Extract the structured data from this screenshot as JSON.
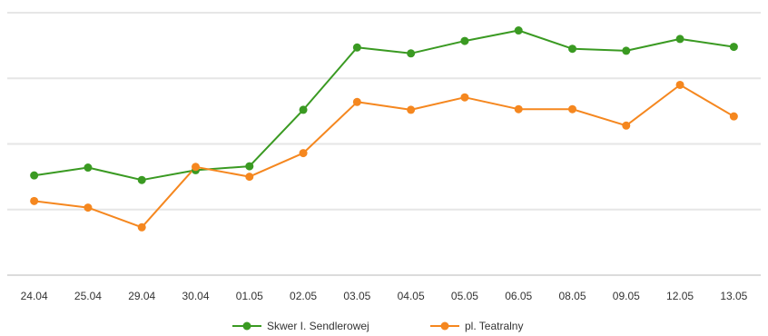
{
  "chart_data": {
    "type": "line",
    "categories": [
      "24.04",
      "25.04",
      "29.04",
      "30.04",
      "01.05",
      "02.05",
      "03.05",
      "04.05",
      "05.05",
      "06.05",
      "08.05",
      "09.05",
      "12.05",
      "13.05"
    ],
    "ylim": [
      0,
      4
    ],
    "grid": true,
    "legend_position": "bottom",
    "series": [
      {
        "name": "Skwer I. Sendlerowej",
        "color": "#3a9a22",
        "values": [
          1.52,
          1.64,
          1.45,
          1.6,
          1.66,
          2.52,
          3.47,
          3.38,
          3.57,
          3.73,
          3.45,
          3.42,
          3.6,
          3.48
        ]
      },
      {
        "name": "pl. Teatralny",
        "color": "#f5871f",
        "values": [
          1.13,
          1.03,
          0.73,
          1.65,
          1.5,
          1.86,
          2.64,
          2.52,
          2.71,
          2.53,
          2.53,
          2.28,
          2.9,
          2.42
        ]
      }
    ]
  }
}
